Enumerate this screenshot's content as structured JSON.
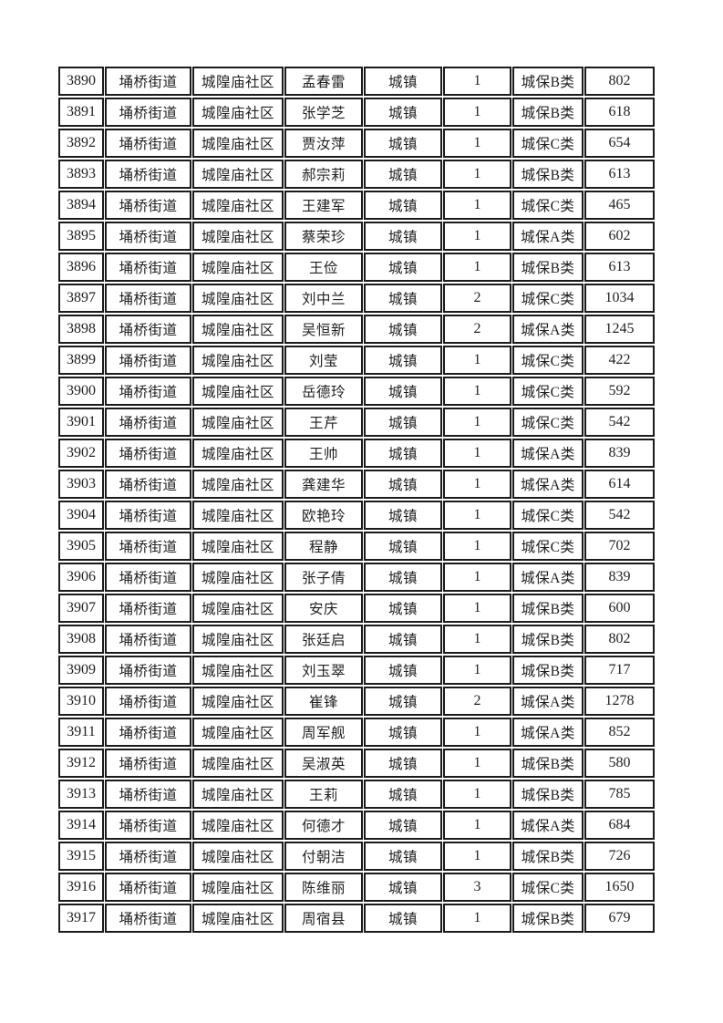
{
  "table": {
    "rows": [
      [
        "3890",
        "埇桥街道",
        "城隍庙社区",
        "孟春雷",
        "城镇",
        "1",
        "城保B类",
        "802"
      ],
      [
        "3891",
        "埇桥街道",
        "城隍庙社区",
        "张学芝",
        "城镇",
        "1",
        "城保B类",
        "618"
      ],
      [
        "3892",
        "埇桥街道",
        "城隍庙社区",
        "贾汝萍",
        "城镇",
        "1",
        "城保C类",
        "654"
      ],
      [
        "3893",
        "埇桥街道",
        "城隍庙社区",
        "郝宗莉",
        "城镇",
        "1",
        "城保B类",
        "613"
      ],
      [
        "3894",
        "埇桥街道",
        "城隍庙社区",
        "王建军",
        "城镇",
        "1",
        "城保C类",
        "465"
      ],
      [
        "3895",
        "埇桥街道",
        "城隍庙社区",
        "蔡荣珍",
        "城镇",
        "1",
        "城保A类",
        "602"
      ],
      [
        "3896",
        "埇桥街道",
        "城隍庙社区",
        "王俭",
        "城镇",
        "1",
        "城保B类",
        "613"
      ],
      [
        "3897",
        "埇桥街道",
        "城隍庙社区",
        "刘中兰",
        "城镇",
        "2",
        "城保C类",
        "1034"
      ],
      [
        "3898",
        "埇桥街道",
        "城隍庙社区",
        "吴恒新",
        "城镇",
        "2",
        "城保A类",
        "1245"
      ],
      [
        "3899",
        "埇桥街道",
        "城隍庙社区",
        "刘莹",
        "城镇",
        "1",
        "城保C类",
        "422"
      ],
      [
        "3900",
        "埇桥街道",
        "城隍庙社区",
        "岳德玲",
        "城镇",
        "1",
        "城保C类",
        "592"
      ],
      [
        "3901",
        "埇桥街道",
        "城隍庙社区",
        "王芹",
        "城镇",
        "1",
        "城保C类",
        "542"
      ],
      [
        "3902",
        "埇桥街道",
        "城隍庙社区",
        "王帅",
        "城镇",
        "1",
        "城保A类",
        "839"
      ],
      [
        "3903",
        "埇桥街道",
        "城隍庙社区",
        "龚建华",
        "城镇",
        "1",
        "城保A类",
        "614"
      ],
      [
        "3904",
        "埇桥街道",
        "城隍庙社区",
        "欧艳玲",
        "城镇",
        "1",
        "城保C类",
        "542"
      ],
      [
        "3905",
        "埇桥街道",
        "城隍庙社区",
        "程静",
        "城镇",
        "1",
        "城保C类",
        "702"
      ],
      [
        "3906",
        "埇桥街道",
        "城隍庙社区",
        "张子倩",
        "城镇",
        "1",
        "城保A类",
        "839"
      ],
      [
        "3907",
        "埇桥街道",
        "城隍庙社区",
        "安庆",
        "城镇",
        "1",
        "城保B类",
        "600"
      ],
      [
        "3908",
        "埇桥街道",
        "城隍庙社区",
        "张廷启",
        "城镇",
        "1",
        "城保B类",
        "802"
      ],
      [
        "3909",
        "埇桥街道",
        "城隍庙社区",
        "刘玉翠",
        "城镇",
        "1",
        "城保B类",
        "717"
      ],
      [
        "3910",
        "埇桥街道",
        "城隍庙社区",
        "崔锋",
        "城镇",
        "2",
        "城保A类",
        "1278"
      ],
      [
        "3911",
        "埇桥街道",
        "城隍庙社区",
        "周军舰",
        "城镇",
        "1",
        "城保A类",
        "852"
      ],
      [
        "3912",
        "埇桥街道",
        "城隍庙社区",
        "吴淑英",
        "城镇",
        "1",
        "城保B类",
        "580"
      ],
      [
        "3913",
        "埇桥街道",
        "城隍庙社区",
        "王莉",
        "城镇",
        "1",
        "城保B类",
        "785"
      ],
      [
        "3914",
        "埇桥街道",
        "城隍庙社区",
        "何德才",
        "城镇",
        "1",
        "城保A类",
        "684"
      ],
      [
        "3915",
        "埇桥街道",
        "城隍庙社区",
        "付朝洁",
        "城镇",
        "1",
        "城保B类",
        "726"
      ],
      [
        "3916",
        "埇桥街道",
        "城隍庙社区",
        "陈维丽",
        "城镇",
        "3",
        "城保C类",
        "1650"
      ],
      [
        "3917",
        "埇桥街道",
        "城隍庙社区",
        "周宿县",
        "城镇",
        "1",
        "城保B类",
        "679"
      ]
    ]
  }
}
